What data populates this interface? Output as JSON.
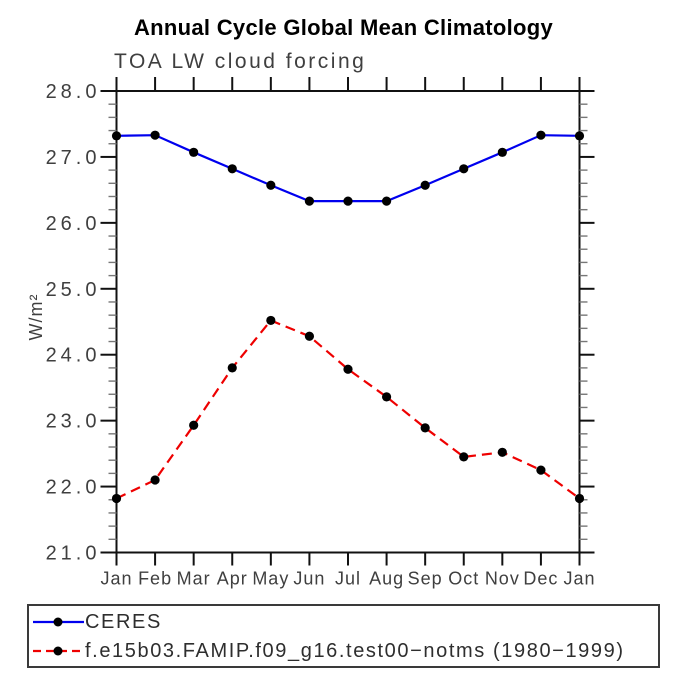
{
  "header": {
    "title": "Annual Cycle Global Mean Climatology",
    "subtitle": "TOA LW cloud forcing"
  },
  "chart_data": {
    "type": "line",
    "title": "Annual Cycle Global Mean Climatology",
    "subtitle": "TOA LW cloud forcing",
    "xlabel": "",
    "ylabel": "W/m²",
    "categories": [
      "Jan",
      "Feb",
      "Mar",
      "Apr",
      "May",
      "Jun",
      "Jul",
      "Aug",
      "Sep",
      "Oct",
      "Nov",
      "Dec",
      "Jan"
    ],
    "ylim": [
      21.0,
      28.0
    ],
    "ytick_interval": 1.0,
    "ytick_minor_interval": 0.2,
    "ytick_labels": [
      "21.0",
      "22.0",
      "23.0",
      "24.0",
      "25.0",
      "26.0",
      "27.0",
      "28.0"
    ],
    "grid": false,
    "legend_position": "bottom-left",
    "series": [
      {
        "name": "CERES",
        "color": "#0000ee",
        "line_style": "solid",
        "marker": "circle",
        "marker_color": "#000000",
        "values": [
          27.32,
          27.33,
          27.07,
          26.82,
          26.57,
          26.33,
          26.33,
          26.33,
          26.57,
          26.82,
          27.07,
          27.33,
          27.32
        ]
      },
      {
        "name": "f.e15b03.FAMIP.f09_g16.test00−notms (1980−1999)",
        "color": "#ee0000",
        "line_style": "dashed",
        "marker": "circle",
        "marker_color": "#000000",
        "values": [
          21.82,
          22.1,
          22.93,
          23.8,
          24.52,
          24.28,
          23.78,
          23.36,
          22.89,
          22.45,
          22.52,
          22.25,
          21.82
        ]
      }
    ]
  },
  "colors": {
    "axis": "#111111",
    "minor_tick": "#777777",
    "tick_label": "#3f3f3f",
    "title": "#000000",
    "legend_border": "#3a3a3a"
  }
}
